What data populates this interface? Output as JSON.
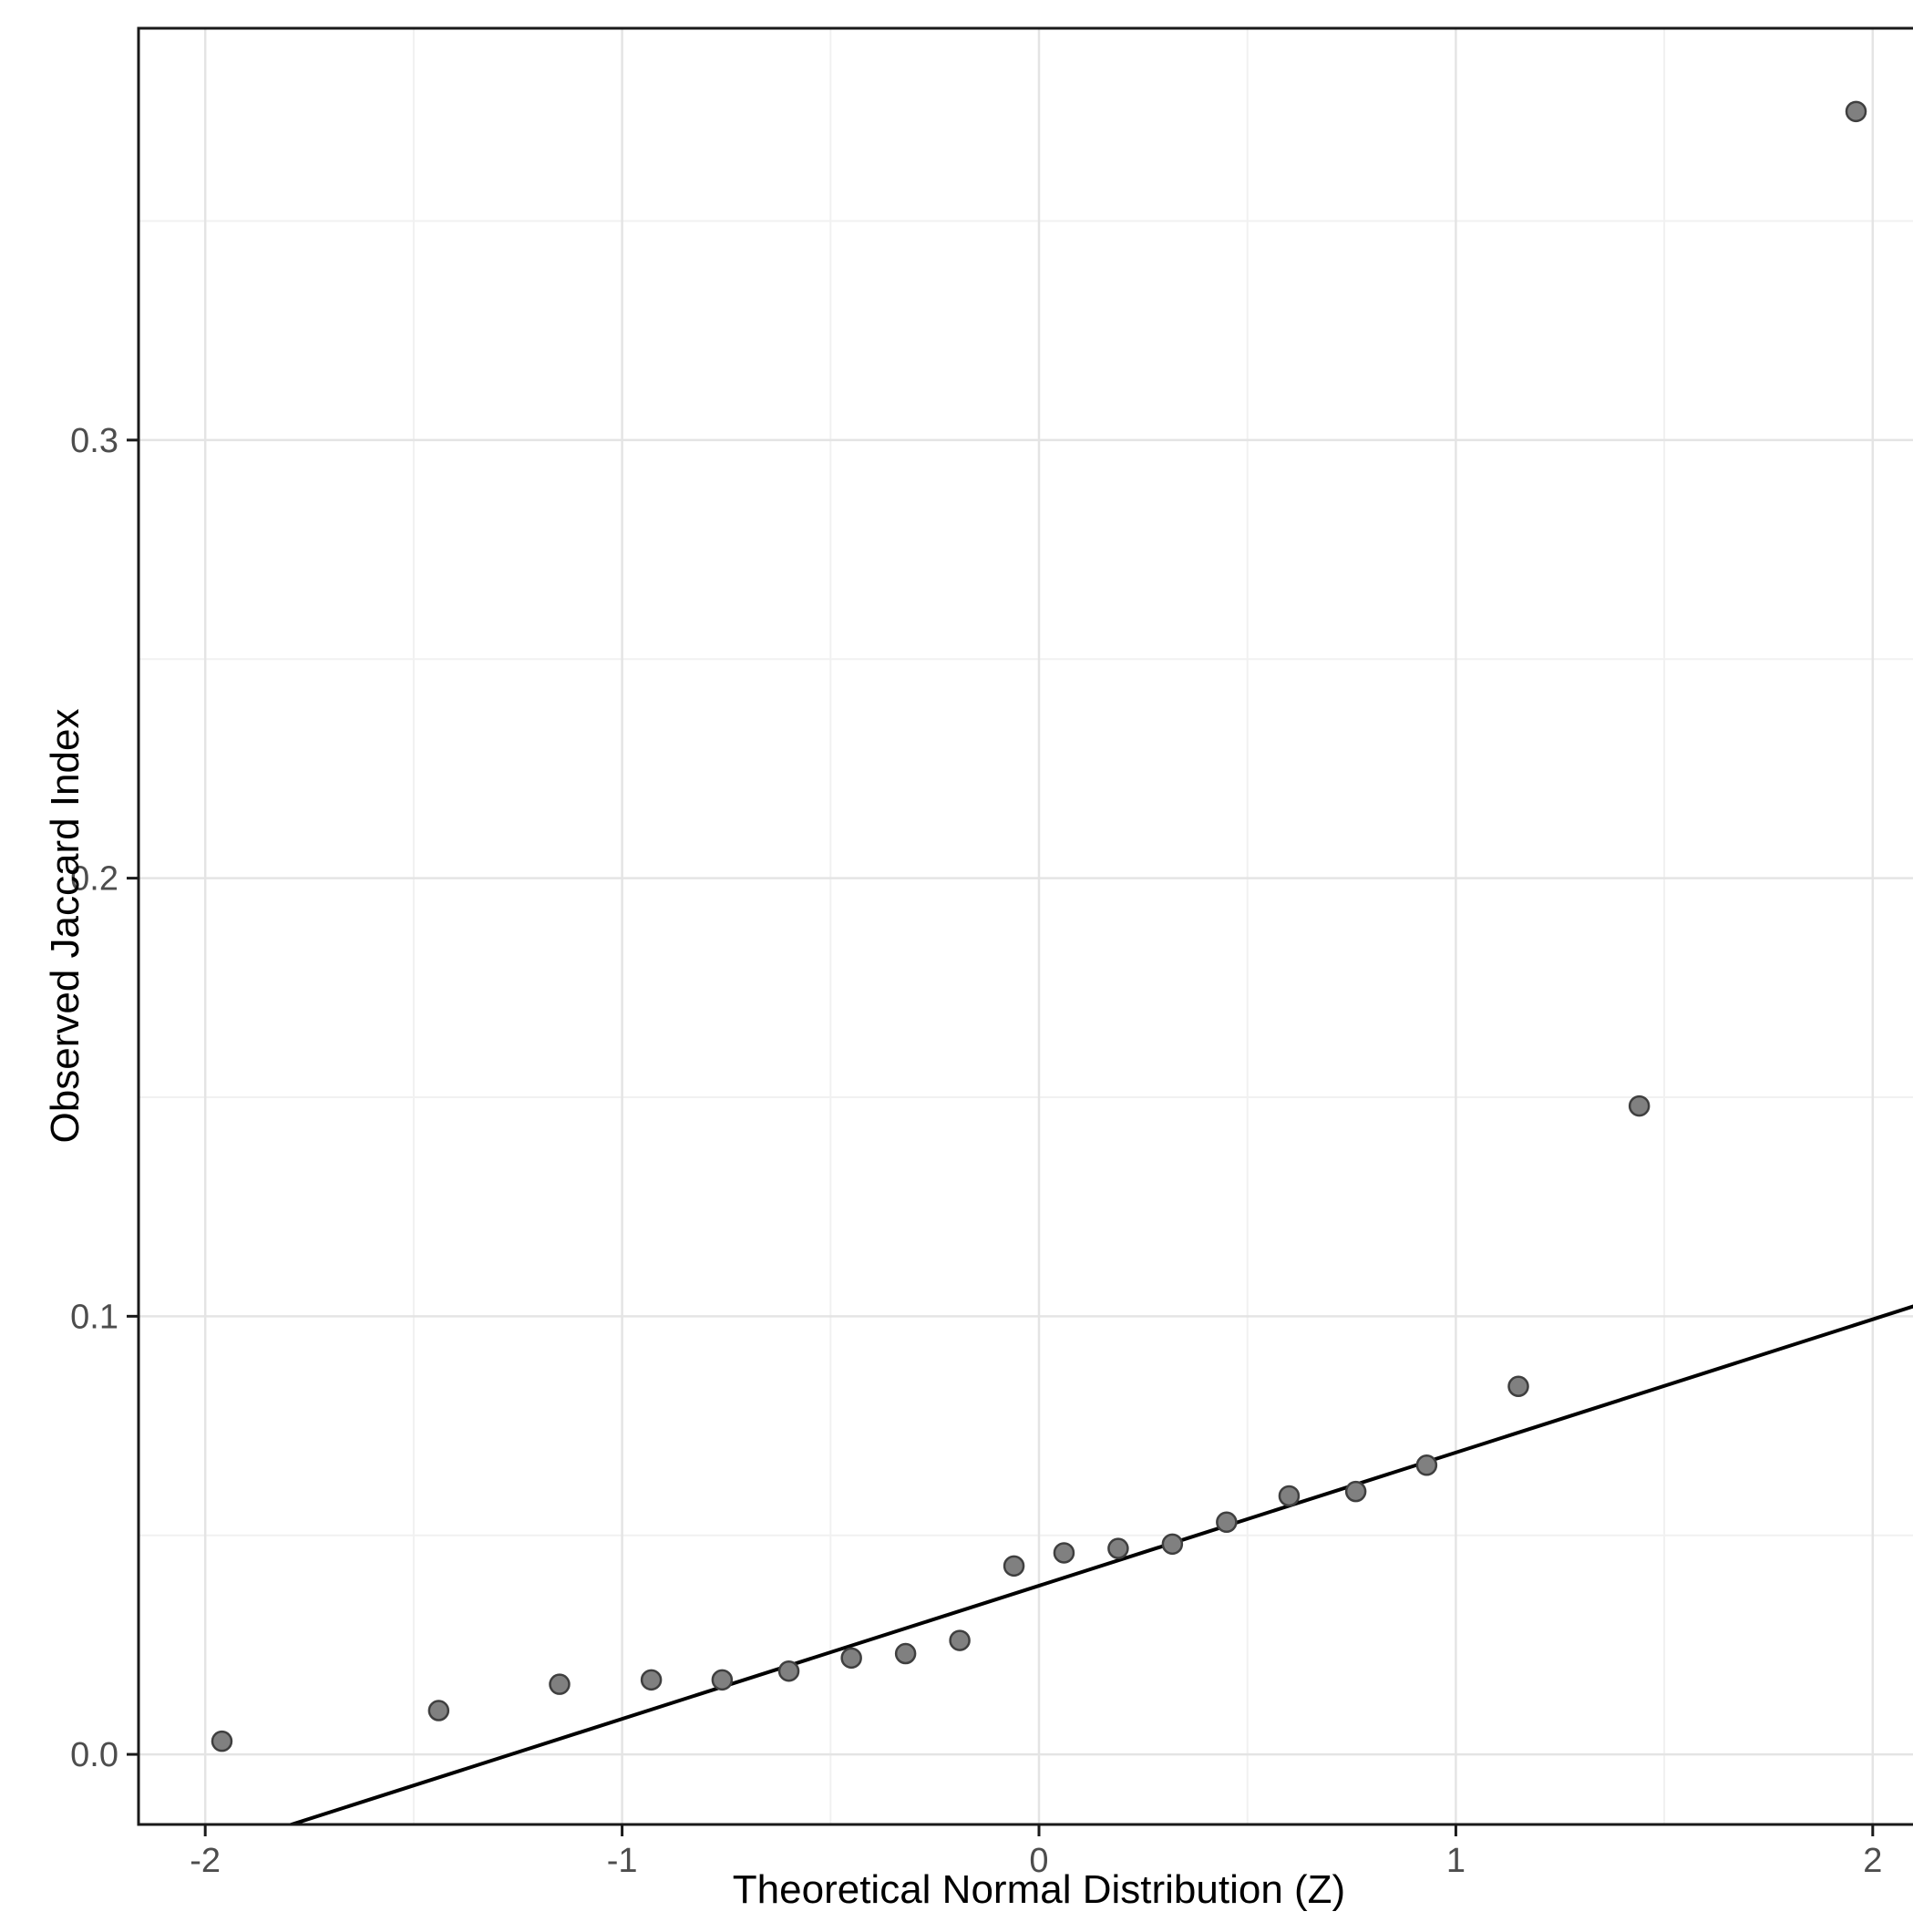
{
  "chart_data": {
    "type": "scatter",
    "title": "",
    "xlabel": "Theoretical Normal Distribution (Z)",
    "ylabel": "Observed Jaccard Index",
    "xlim": [
      -2.16,
      2.16
    ],
    "ylim": [
      -0.016,
      0.394
    ],
    "grid": true,
    "legend": "none",
    "x_tick_values": [
      -2,
      -1,
      0,
      1,
      2
    ],
    "x_tick_labels": [
      "-2",
      "-1",
      "0",
      "1",
      "2"
    ],
    "y_tick_values": [
      0.0,
      0.1,
      0.2,
      0.3
    ],
    "y_tick_labels": [
      "0.0",
      "0.1",
      "0.2",
      "0.3"
    ],
    "x_minor_gridlines": [
      -1.5,
      -0.5,
      0.5,
      1.5
    ],
    "y_minor_gridlines": [
      0.05,
      0.15,
      0.25,
      0.35
    ],
    "points": {
      "x": [
        -1.96,
        -1.44,
        -1.15,
        -0.93,
        -0.76,
        -0.6,
        -0.45,
        -0.32,
        -0.19,
        -0.06,
        0.06,
        0.19,
        0.32,
        0.45,
        0.6,
        0.76,
        0.93,
        1.15,
        1.44,
        1.96
      ],
      "y": [
        0.003,
        0.01,
        0.016,
        0.017,
        0.017,
        0.019,
        0.022,
        0.023,
        0.026,
        0.043,
        0.046,
        0.047,
        0.048,
        0.053,
        0.059,
        0.06,
        0.066,
        0.084,
        0.148,
        0.375
      ]
    },
    "reference_line": {
      "slope": 0.0304,
      "intercept": 0.0385
    },
    "colors": {
      "background": "#ffffff",
      "panel_background": "#ffffff",
      "grid_major": "#e4e4e4",
      "grid_minor": "#f1f1f1",
      "panel_border": "#1a1a1a",
      "point_fill": "#808080",
      "point_stroke": "#3f3f3f",
      "reference_line": "#000000",
      "tick_mark": "#1a1a1a",
      "tick_label": "#4d4d4d",
      "axis_title": "#000000"
    }
  }
}
